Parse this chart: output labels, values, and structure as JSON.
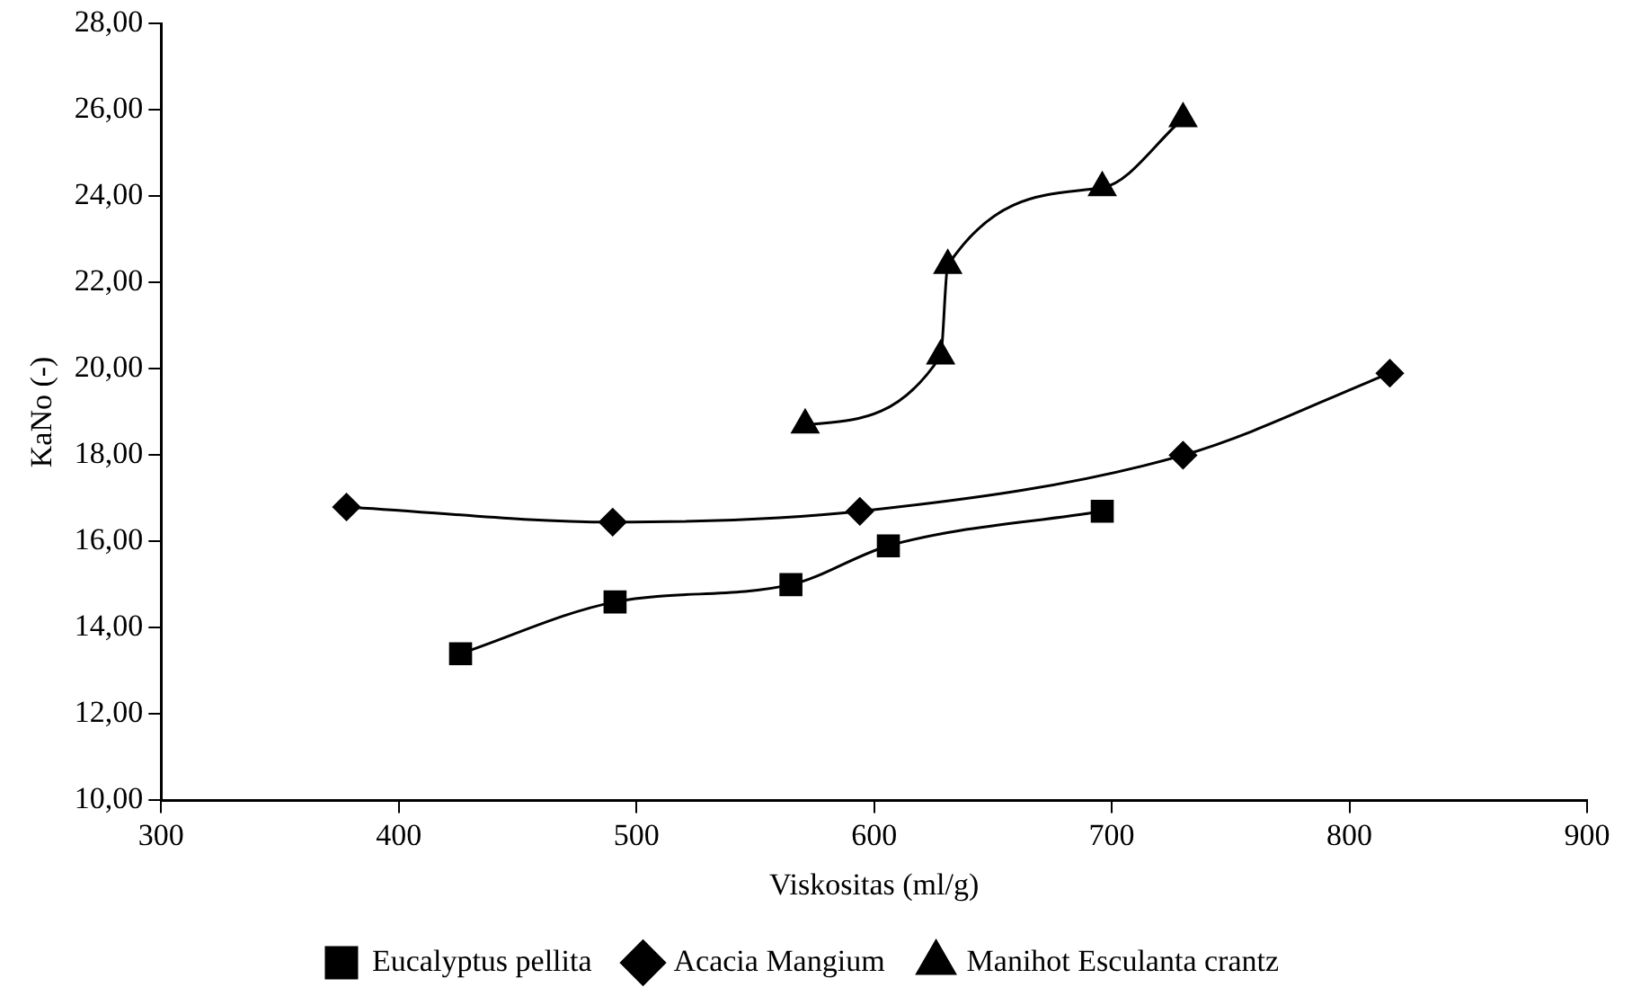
{
  "chart_data": {
    "type": "line",
    "xlabel": "Viskositas (ml/g)",
    "ylabel": "KaNo (-)",
    "xlim": [
      300,
      900
    ],
    "xticks": [
      300,
      400,
      500,
      600,
      700,
      800,
      900
    ],
    "ylim": [
      10,
      28
    ],
    "yticks": [
      {
        "value": 10,
        "label": "10,00"
      },
      {
        "value": 12,
        "label": "12,00"
      },
      {
        "value": 14,
        "label": "14,00"
      },
      {
        "value": 16,
        "label": "16,00"
      },
      {
        "value": 18,
        "label": "18,00"
      },
      {
        "value": 20,
        "label": "20,00"
      },
      {
        "value": 22,
        "label": "22,00"
      },
      {
        "value": 24,
        "label": "24,00"
      },
      {
        "value": 26,
        "label": "26,00"
      },
      {
        "value": 28,
        "label": "28,00"
      }
    ],
    "grid": false,
    "legend": "bottom",
    "line_style": "solid",
    "series": [
      {
        "name": "Eucalyptus pellita",
        "color": "#000000",
        "marker": "square",
        "x": [
          426,
          491,
          565,
          606,
          696
        ],
        "values": [
          13.4,
          14.6,
          15.0,
          15.9,
          16.7
        ]
      },
      {
        "name": "Acacia Mangium",
        "color": "#000000",
        "marker": "diamond",
        "x": [
          378,
          490,
          594,
          730,
          817
        ],
        "values": [
          16.8,
          16.45,
          16.7,
          18.0,
          19.9
        ]
      },
      {
        "name": "Manihot Esculanta crantz",
        "color": "#000000",
        "marker": "triangle",
        "x": [
          571,
          628,
          631,
          696,
          730
        ],
        "values": [
          18.7,
          20.3,
          22.4,
          24.2,
          25.8
        ]
      }
    ]
  }
}
